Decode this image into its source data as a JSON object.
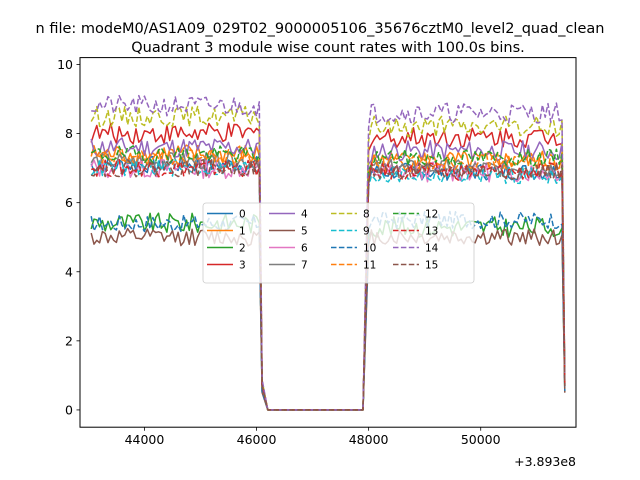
{
  "chart_data": {
    "type": "line",
    "suptitle": "n file: modeM0/AS1A09_029T02_9000005106_35676cztM0_level2_quad_clean",
    "title": "Quadrant 3 module wise count rates with 100.0s bins.",
    "xlabel": "",
    "ylabel": "",
    "x_offset_label": "+3.893e8",
    "xlim": [
      42850,
      51700
    ],
    "ylim": [
      -0.5,
      10.2
    ],
    "x_ticks": [
      44000,
      46000,
      48000,
      50000
    ],
    "x_tick_labels": [
      "44000",
      "46000",
      "48000",
      "50000"
    ],
    "y_ticks": [
      0,
      2,
      4,
      6,
      8,
      10
    ],
    "y_tick_labels": [
      "0",
      "2",
      "4",
      "6",
      "8",
      "10"
    ],
    "legend_position": "center",
    "segments": [
      {
        "start": 43050,
        "end": 46050,
        "step": 50
      },
      {
        "start": 48000,
        "end": 51500,
        "step": 50
      }
    ],
    "gap": {
      "start": 46100,
      "end": 47950,
      "value": 0
    },
    "series": [
      {
        "name": "0",
        "color": "#1f77b4",
        "dash": "solid",
        "level1": 7.1,
        "level2": 6.9,
        "noise": 0.25
      },
      {
        "name": "1",
        "color": "#ff7f0e",
        "dash": "solid",
        "level1": 7.4,
        "level2": 7.2,
        "noise": 0.3
      },
      {
        "name": "2",
        "color": "#2ca02c",
        "dash": "solid",
        "level1": 5.4,
        "level2": 5.3,
        "noise": 0.3
      },
      {
        "name": "3",
        "color": "#d62728",
        "dash": "solid",
        "level1": 8.0,
        "level2": 7.9,
        "noise": 0.3
      },
      {
        "name": "4",
        "color": "#9467bd",
        "dash": "solid",
        "level1": 7.6,
        "level2": 7.5,
        "noise": 0.3
      },
      {
        "name": "5",
        "color": "#8c564b",
        "dash": "solid",
        "level1": 5.0,
        "level2": 5.0,
        "noise": 0.25
      },
      {
        "name": "6",
        "color": "#e377c2",
        "dash": "solid",
        "level1": 7.0,
        "level2": 6.9,
        "noise": 0.3
      },
      {
        "name": "7",
        "color": "#7f7f7f",
        "dash": "solid",
        "level1": 7.2,
        "level2": 7.0,
        "noise": 0.25
      },
      {
        "name": "8",
        "color": "#bcbd22",
        "dash": "dashed",
        "level1": 8.5,
        "level2": 8.2,
        "noise": 0.3
      },
      {
        "name": "9",
        "color": "#17becf",
        "dash": "dashed",
        "level1": 7.0,
        "level2": 6.8,
        "noise": 0.25
      },
      {
        "name": "10",
        "color": "#1f77b4",
        "dash": "dashed",
        "level1": 5.4,
        "level2": 5.5,
        "noise": 0.25
      },
      {
        "name": "11",
        "color": "#ff7f0e",
        "dash": "dashed",
        "level1": 7.3,
        "level2": 7.2,
        "noise": 0.25
      },
      {
        "name": "12",
        "color": "#2ca02c",
        "dash": "dashed",
        "level1": 7.4,
        "level2": 7.3,
        "noise": 0.25
      },
      {
        "name": "13",
        "color": "#d62728",
        "dash": "dashed",
        "level1": 7.0,
        "level2": 6.9,
        "noise": 0.25
      },
      {
        "name": "14",
        "color": "#9467bd",
        "dash": "dashed",
        "level1": 8.8,
        "level2": 8.6,
        "noise": 0.3
      },
      {
        "name": "15",
        "color": "#8c564b",
        "dash": "dashed",
        "level1": 7.0,
        "level2": 6.9,
        "noise": 0.25
      }
    ]
  }
}
